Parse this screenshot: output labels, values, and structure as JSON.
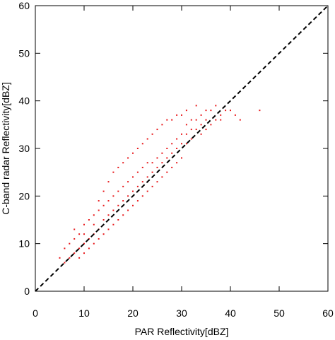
{
  "chart_data": {
    "type": "scatter",
    "title": "",
    "xlabel": "PAR Reflectivity[dBZ]",
    "ylabel": "C-band radar Reflectivity[dBZ]",
    "xlim": [
      0,
      60
    ],
    "ylim": [
      0,
      60
    ],
    "xticks": [
      "0",
      "10",
      "20",
      "30",
      "40",
      "50",
      "60"
    ],
    "yticks": [
      "0",
      "10",
      "20",
      "30",
      "40",
      "50",
      "60"
    ],
    "grid": false,
    "legend": "none",
    "series": [
      {
        "marker_color": "#e8191c",
        "x": [
          5,
          6,
          6,
          7,
          7,
          8,
          8,
          8,
          9,
          9,
          9,
          10,
          10,
          10,
          10,
          11,
          11,
          11,
          12,
          12,
          12,
          12,
          13,
          13,
          13,
          13,
          14,
          14,
          14,
          14,
          15,
          15,
          15,
          15,
          16,
          16,
          16,
          16,
          17,
          17,
          17,
          17,
          18,
          18,
          18,
          18,
          19,
          19,
          19,
          19,
          20,
          20,
          20,
          20,
          21,
          21,
          21,
          21,
          22,
          22,
          22,
          22,
          23,
          23,
          23,
          23,
          24,
          24,
          24,
          24,
          25,
          25,
          25,
          25,
          26,
          26,
          26,
          26,
          27,
          27,
          27,
          27,
          28,
          28,
          28,
          28,
          29,
          29,
          29,
          29,
          30,
          30,
          30,
          30,
          31,
          31,
          31,
          31,
          32,
          32,
          32,
          33,
          33,
          33,
          34,
          34,
          34,
          35,
          35,
          35,
          36,
          36,
          37,
          37,
          38,
          38,
          39,
          40,
          41,
          42,
          46
        ],
        "y": [
          7,
          9,
          6,
          10,
          7,
          11,
          8,
          13,
          9,
          12,
          7,
          14,
          10,
          8,
          12,
          11,
          15,
          9,
          16,
          12,
          10,
          14,
          17,
          13,
          11,
          19,
          18,
          15,
          12,
          21,
          19,
          16,
          13,
          23,
          20,
          17,
          14,
          25,
          21,
          18,
          15,
          26,
          22,
          19,
          16,
          27,
          23,
          20,
          17,
          28,
          24,
          21,
          18,
          29,
          25,
          22,
          19,
          30,
          26,
          23,
          20,
          31,
          27,
          24,
          21,
          32,
          27,
          25,
          22,
          33,
          28,
          26,
          23,
          34,
          29,
          27,
          24,
          35,
          30,
          28,
          25,
          36,
          31,
          29,
          26,
          36,
          32,
          30,
          27,
          37,
          33,
          31,
          28,
          37,
          33,
          31,
          35,
          38,
          34,
          32,
          36,
          34,
          36,
          39,
          35,
          33,
          37,
          36,
          34,
          38,
          35,
          38,
          36,
          39,
          37,
          36,
          38,
          38,
          37,
          36,
          38
        ]
      },
      {
        "name": "",
        "line": "1:1",
        "x": [
          0,
          60
        ],
        "y": [
          0,
          60
        ],
        "line_color": "#000000",
        "dash": true
      }
    ]
  }
}
